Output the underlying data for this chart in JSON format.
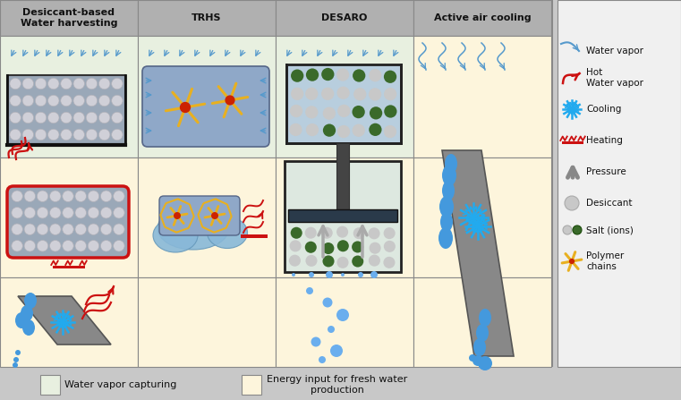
{
  "title_col1": "Desiccant-based\nWater harvesting",
  "title_col2": "TRHS",
  "title_col3": "DESARO",
  "title_col4": "Active air cooling",
  "bg_main": "#c8c8c8",
  "bg_green": "#e8f0e0",
  "bg_yellow": "#fdf5dc",
  "col_header_bg": "#b0b0b0",
  "footer_green": "#e8f0e0",
  "footer_yellow": "#fdf5dc",
  "footer_label1": "Water vapor capturing",
  "footer_label2": "Energy input for fresh water\nproduction",
  "water_vapor_color": "#5599cc",
  "hot_vapor_color": "#cc1111",
  "desiccant_color": "#d0d0d8",
  "salt_dark_color": "#3a6a2a",
  "polymer_color": "#e8b020",
  "polymer_core": "#cc2200",
  "gray_cyl_color": "#888888",
  "blue_water_color": "#4499dd",
  "red_color": "#cc1111",
  "dark_border": "#222222",
  "container_blue": "#8fa8c8",
  "desiccant_bed": "#9aa8b8",
  "legend_items_y": [
    390,
    360,
    325,
    290,
    255,
    220,
    190,
    155
  ],
  "leg_labels": [
    "Water vapor",
    "Hot\nWater vapor",
    "Cooling",
    "Heating",
    "Pressure",
    "Desiccant",
    "Salt (ions)",
    "Polymer\nchains"
  ]
}
